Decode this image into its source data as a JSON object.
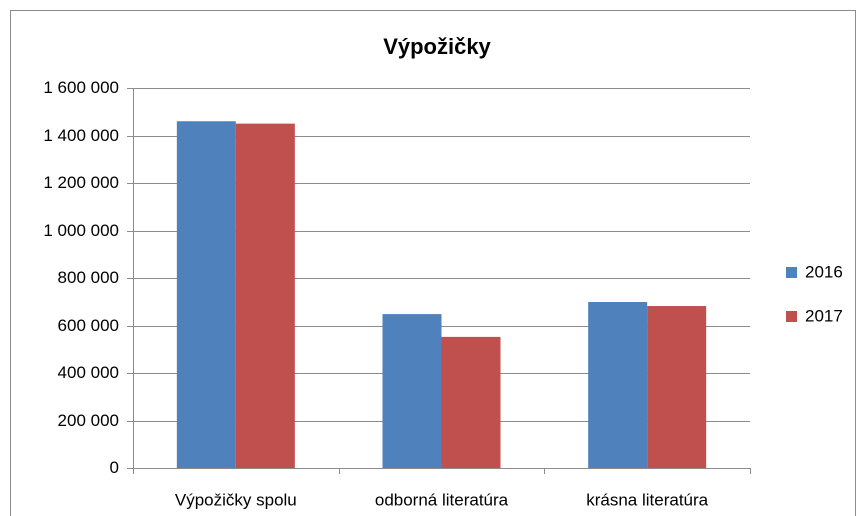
{
  "chart_data": {
    "type": "bar",
    "title": "Výpožičky",
    "categories": [
      "Výpožičky spolu",
      "odborná literatúra",
      "krásna literatúra"
    ],
    "series": [
      {
        "name": "2016",
        "color": "#4f81bd",
        "values": [
          1460000,
          648000,
          699000
        ]
      },
      {
        "name": "2017",
        "color": "#c0504d",
        "values": [
          1450000,
          552000,
          682000
        ]
      }
    ],
    "ylim": [
      0,
      1600000
    ],
    "yticks": [
      0,
      {
        "value": 200000,
        "label": "200 000"
      },
      {
        "value": 400000,
        "label": "400 000"
      },
      {
        "value": 600000,
        "label": "600 000"
      },
      {
        "value": 800000,
        "label": "800 000"
      },
      {
        "value": 1000000,
        "label": "1 000 000"
      },
      {
        "value": 1200000,
        "label": "1 200 000"
      },
      {
        "value": 1400000,
        "label": "1 400 000"
      },
      {
        "value": 1600000,
        "label": "1 600 000"
      }
    ],
    "grid": true,
    "legend": "right"
  }
}
